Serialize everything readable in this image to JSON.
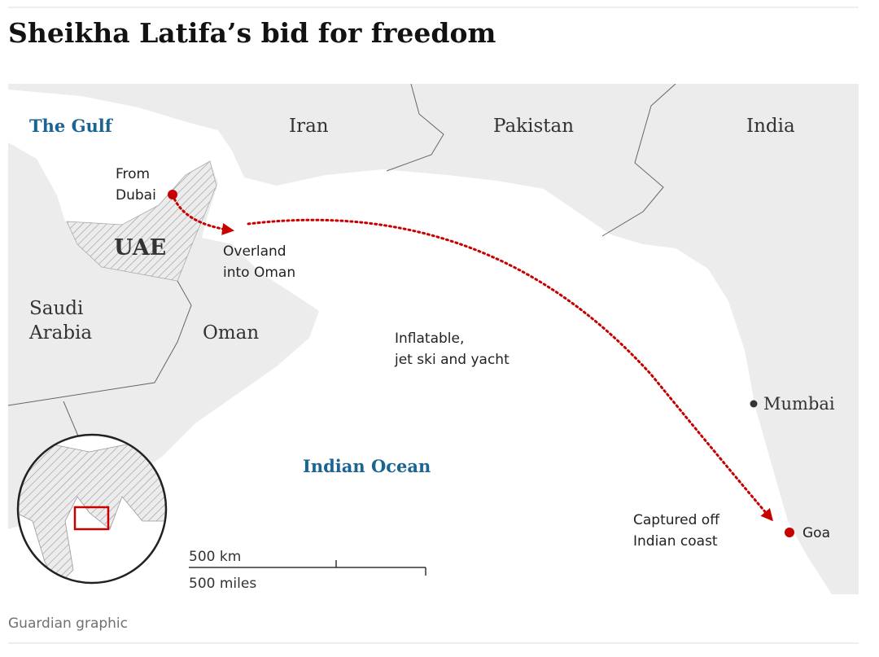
{
  "header": {
    "title": "Sheikha Latifa’s bid for freedom"
  },
  "map": {
    "places": {
      "gulf": "The Gulf",
      "iran": "Iran",
      "pakistan": "Pakistan",
      "india": "India",
      "uae": "UAE",
      "saudi": [
        "Saudi",
        "Arabia"
      ],
      "oman": "Oman",
      "ocean": "Indian Ocean",
      "mumbai": "Mumbai",
      "goa": "Goa"
    },
    "route": {
      "start": [
        "From",
        "Dubai"
      ],
      "overland": [
        "Overland",
        "into Oman"
      ],
      "sea": [
        "Inflatable,",
        "jet ski and yacht"
      ],
      "end": [
        "Captured off",
        "Indian coast"
      ]
    },
    "scale": {
      "km": "500 km",
      "miles": "500 miles"
    }
  },
  "footer": {
    "source": "Guardian graphic"
  }
}
